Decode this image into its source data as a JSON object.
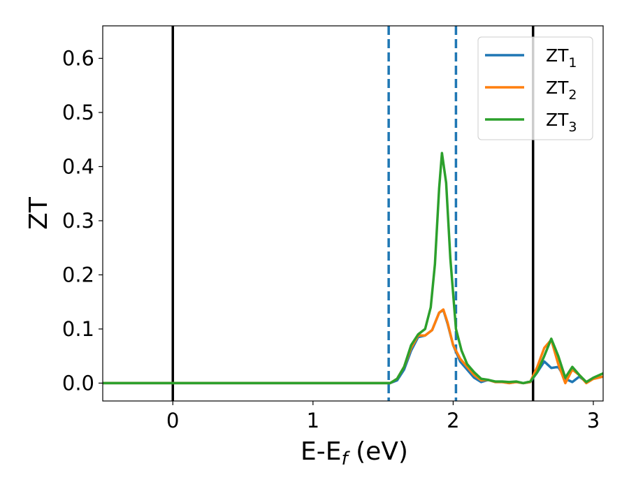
{
  "chart_data": {
    "type": "line",
    "xlabel": "E-E",
    "xlabel_sub": "f",
    "xlabel_suffix": " (eV)",
    "ylabel": "ZT",
    "xlim": [
      -0.5,
      3.07
    ],
    "ylim": [
      -0.033,
      0.66
    ],
    "xticks": [
      0,
      1,
      2,
      3
    ],
    "xtick_labels": [
      "0",
      "1",
      "2",
      "3"
    ],
    "yticks": [
      0.0,
      0.1,
      0.2,
      0.3,
      0.4,
      0.5,
      0.6
    ],
    "ytick_labels": [
      "0.0",
      "0.1",
      "0.2",
      "0.3",
      "0.4",
      "0.5",
      "0.6"
    ],
    "grid": false,
    "legend_position": "top-right",
    "vertical_lines": [
      {
        "x": 0.0,
        "style": "solid",
        "color": "#000000"
      },
      {
        "x": 2.57,
        "style": "solid",
        "color": "#000000"
      },
      {
        "x": 1.54,
        "style": "dashed",
        "color": "#1f77b4"
      },
      {
        "x": 2.02,
        "style": "dashed",
        "color": "#1f77b4"
      }
    ],
    "series": [
      {
        "name": "ZT",
        "name_sub": "1",
        "color": "#1f77b4",
        "x": [
          -0.5,
          1.5,
          1.55,
          1.6,
          1.65,
          1.7,
          1.75,
          1.8,
          1.85,
          1.9,
          1.93,
          1.96,
          2.0,
          2.05,
          2.1,
          2.15,
          2.2,
          2.25,
          2.3,
          2.35,
          2.4,
          2.45,
          2.5,
          2.55,
          2.6,
          2.65,
          2.7,
          2.75,
          2.8,
          2.85,
          2.9,
          2.95,
          3.0,
          3.07
        ],
        "y": [
          0.0,
          0.0,
          0.0,
          0.005,
          0.025,
          0.06,
          0.085,
          0.088,
          0.098,
          0.13,
          0.135,
          0.11,
          0.07,
          0.04,
          0.025,
          0.01,
          0.002,
          0.006,
          0.002,
          0.002,
          0.0,
          0.002,
          0.0,
          0.002,
          0.02,
          0.04,
          0.028,
          0.03,
          0.008,
          0.002,
          0.012,
          0.002,
          0.008,
          0.012
        ]
      },
      {
        "name": "ZT",
        "name_sub": "2",
        "color": "#ff7f0e",
        "x": [
          -0.5,
          1.5,
          1.55,
          1.6,
          1.65,
          1.7,
          1.75,
          1.8,
          1.85,
          1.9,
          1.93,
          1.96,
          2.0,
          2.05,
          2.1,
          2.15,
          2.2,
          2.25,
          2.3,
          2.35,
          2.4,
          2.45,
          2.5,
          2.55,
          2.6,
          2.65,
          2.7,
          2.75,
          2.8,
          2.85,
          2.9,
          2.95,
          3.0,
          3.07
        ],
        "y": [
          0.0,
          0.0,
          0.0,
          0.008,
          0.03,
          0.065,
          0.088,
          0.088,
          0.098,
          0.13,
          0.136,
          0.112,
          0.07,
          0.045,
          0.03,
          0.015,
          0.005,
          0.006,
          0.002,
          0.002,
          0.0,
          0.002,
          0.0,
          0.002,
          0.03,
          0.065,
          0.08,
          0.035,
          0.0,
          0.025,
          0.015,
          0.0,
          0.008,
          0.012
        ]
      },
      {
        "name": "ZT",
        "name_sub": "3",
        "color": "#2ca02c",
        "x": [
          -0.5,
          1.5,
          1.55,
          1.6,
          1.65,
          1.7,
          1.75,
          1.8,
          1.84,
          1.87,
          1.9,
          1.92,
          1.95,
          1.98,
          2.02,
          2.06,
          2.1,
          2.15,
          2.2,
          2.25,
          2.3,
          2.35,
          2.4,
          2.45,
          2.5,
          2.55,
          2.6,
          2.65,
          2.7,
          2.75,
          2.8,
          2.85,
          2.9,
          2.95,
          3.0,
          3.07
        ],
        "y": [
          0.0,
          0.0,
          0.0,
          0.008,
          0.03,
          0.07,
          0.09,
          0.1,
          0.14,
          0.22,
          0.36,
          0.425,
          0.37,
          0.23,
          0.1,
          0.06,
          0.035,
          0.02,
          0.008,
          0.006,
          0.003,
          0.003,
          0.002,
          0.003,
          0.0,
          0.003,
          0.02,
          0.05,
          0.082,
          0.05,
          0.01,
          0.03,
          0.015,
          0.002,
          0.01,
          0.018
        ]
      }
    ]
  }
}
